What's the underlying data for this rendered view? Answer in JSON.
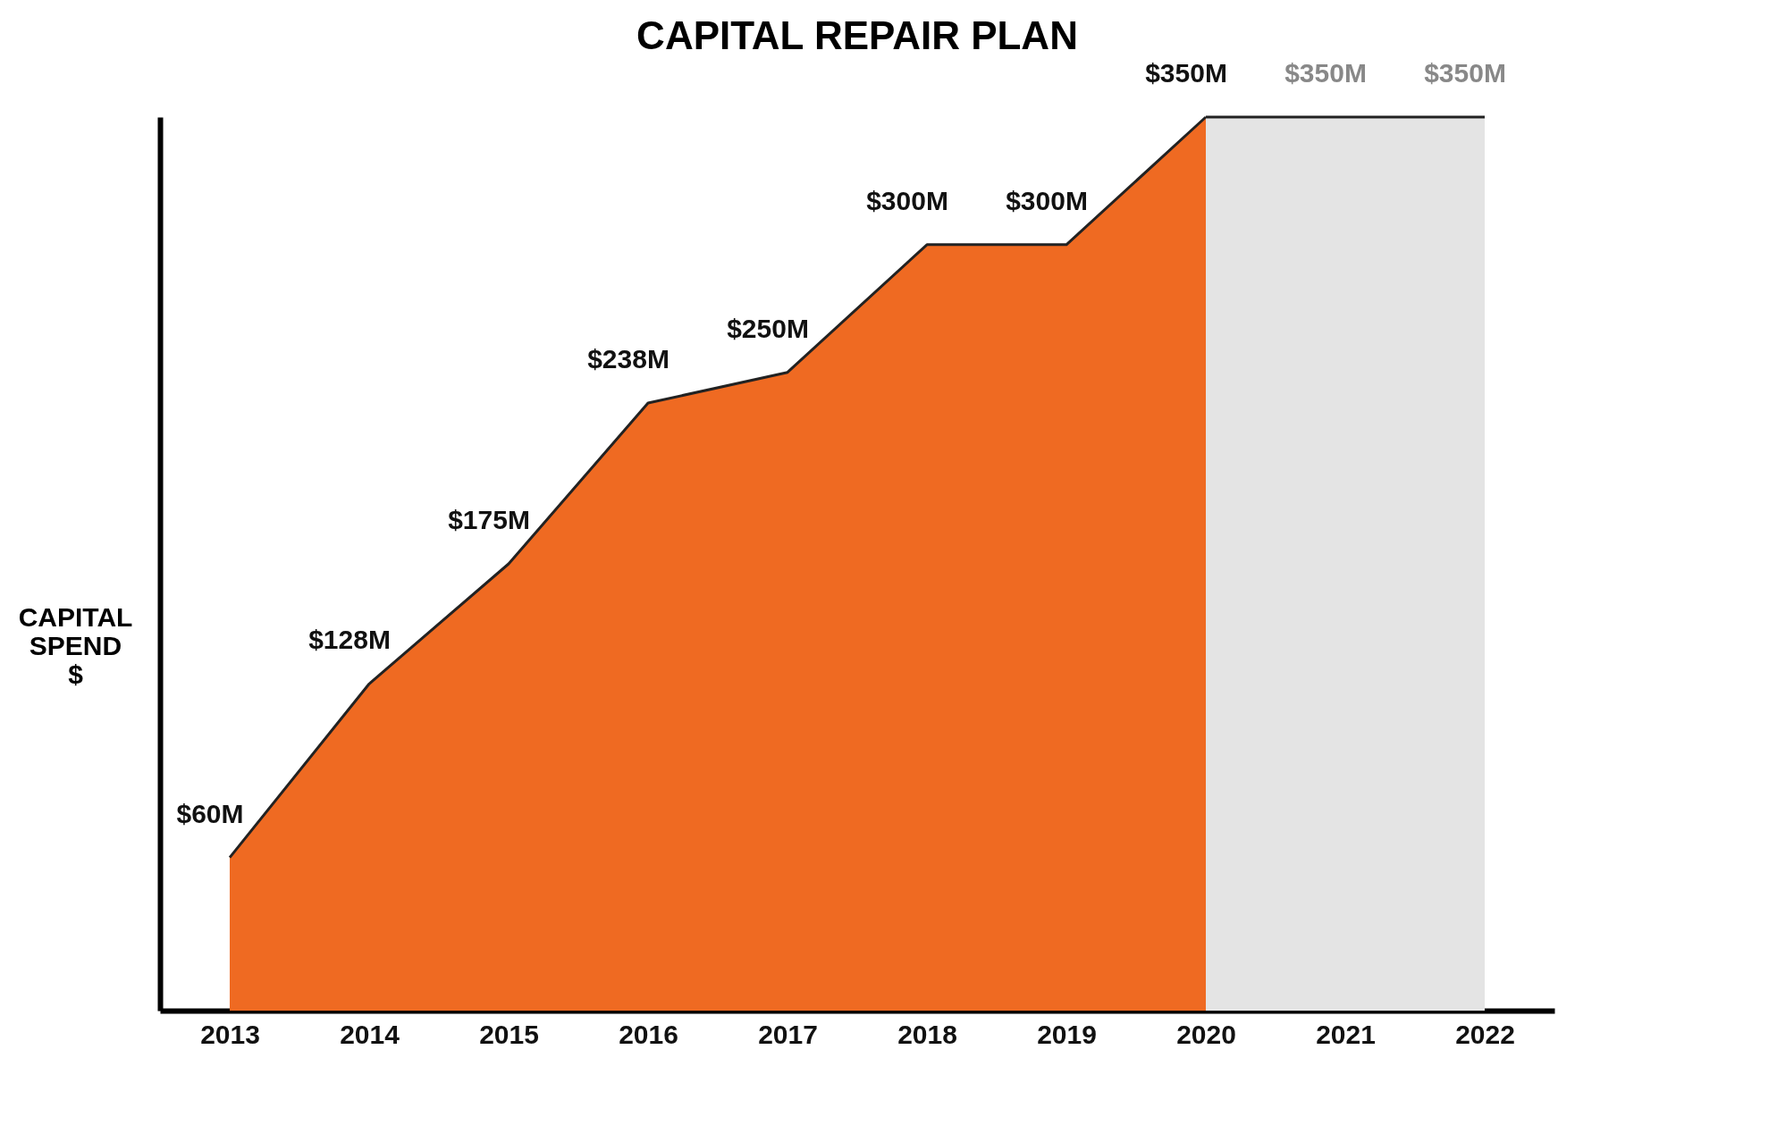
{
  "chart_data": {
    "type": "area",
    "title": "CAPITAL REPAIR PLAN",
    "ylabel": "CAPITAL SPEND $",
    "categories": [
      "2013",
      "2014",
      "2015",
      "2016",
      "2017",
      "2018",
      "2019",
      "2020",
      "2021",
      "2022"
    ],
    "series": [
      {
        "color": "#ef6a22",
        "values": [
          60,
          128,
          175,
          238,
          250,
          300,
          300,
          350,
          null,
          null
        ],
        "value_labels": [
          "$60M",
          "$128M",
          "$175M",
          "$238M",
          "$250M",
          "$300M",
          "$300M",
          "$350M",
          null,
          null
        ]
      },
      {
        "color": "#e4e4e4",
        "values": [
          null,
          null,
          null,
          null,
          null,
          null,
          null,
          350,
          350,
          350
        ],
        "value_labels": [
          null,
          null,
          null,
          null,
          null,
          null,
          null,
          null,
          "$350M",
          "$350M"
        ]
      }
    ]
  }
}
